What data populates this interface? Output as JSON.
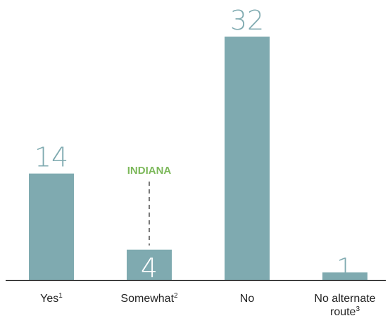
{
  "chart_data": {
    "type": "bar",
    "categories": [
      {
        "label": "Yes",
        "sup": "1"
      },
      {
        "label": "Somewhat",
        "sup": "2"
      },
      {
        "label": "No",
        "sup": ""
      },
      {
        "label": "No alternate",
        "label2": "route",
        "sup": "3"
      }
    ],
    "values": [
      14,
      4,
      32,
      1
    ],
    "ylim": [
      0,
      32
    ],
    "grid": false,
    "annotation": {
      "text": "INDIANA",
      "category_index": 1
    },
    "colors": {
      "bar": "#7faab0",
      "value_label": "#7faab0",
      "annotation": "#7cb85a",
      "axis": "#222222"
    }
  }
}
